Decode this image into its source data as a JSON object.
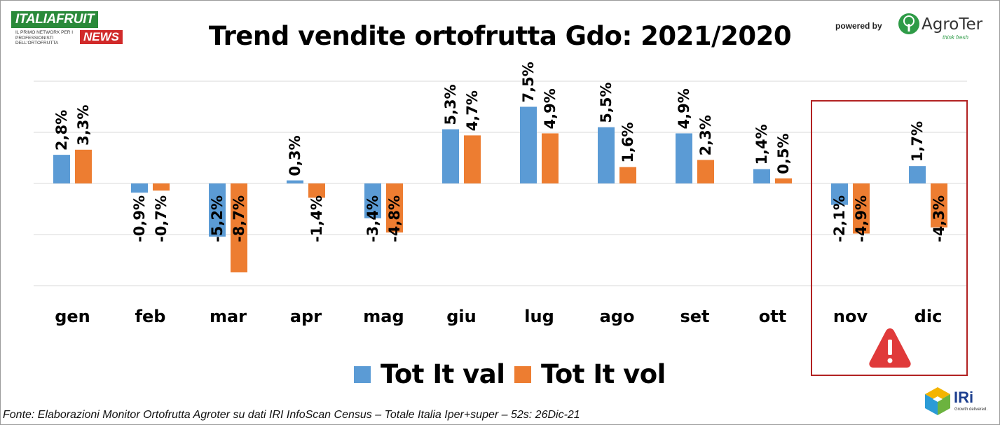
{
  "header": {
    "logo_top": "ITALIAFRUIT",
    "logo_sub": "IL PRIMO NETWORK PER I PROFESSIONISTI DELL'ORTOFRUTTA",
    "logo_news": "NEWS",
    "powered_by": "powered by",
    "sponsor_name": "AgroTer",
    "sponsor_tagline": "think fresh"
  },
  "footer": {
    "source": "Fonte: Elaborazioni Monitor Ortofrutta Agroter su dati IRI InfoScan Census – Totale Italia Iper+super – 52s: 26Dic-21",
    "iri_name": "IRi",
    "iri_tagline": "Growth delivered."
  },
  "chart_data": {
    "type": "bar",
    "title": "Trend vendite ortofrutta Gdo: 2021/2020",
    "xlabel": "",
    "ylabel": "",
    "ylim": [
      -10,
      10
    ],
    "grid": true,
    "legend_position": "bottom",
    "categories": [
      "gen",
      "feb",
      "mar",
      "apr",
      "mag",
      "giu",
      "lug",
      "ago",
      "set",
      "ott",
      "nov",
      "dic"
    ],
    "series": [
      {
        "name": "Tot It val",
        "color": "#5b9bd5",
        "values": [
          2.8,
          -0.9,
          -5.2,
          0.3,
          -3.4,
          5.3,
          7.5,
          5.5,
          4.9,
          1.4,
          -2.1,
          1.7
        ],
        "labels": [
          "2,8%",
          "-0,9%",
          "-5,2%",
          "0,3%",
          "-3,4%",
          "5,3%",
          "7,5%",
          "5,5%",
          "4,9%",
          "1,4%",
          "-2,1%",
          "1,7%"
        ]
      },
      {
        "name": "Tot It vol",
        "color": "#ed7d31",
        "values": [
          3.3,
          -0.7,
          -8.7,
          -1.4,
          -4.8,
          4.7,
          4.9,
          1.6,
          2.3,
          0.5,
          -4.9,
          -4.3
        ],
        "labels": [
          "3,3%",
          "-0,7%",
          "-8,7%",
          "-1,4%",
          "-4,8%",
          "4,7%",
          "4,9%",
          "1,6%",
          "2,3%",
          "0,5%",
          "-4,9%",
          "-4,3%"
        ]
      }
    ],
    "highlight_categories": [
      "nov",
      "dic"
    ],
    "highlight_color": "#b22222",
    "warning_icon": "warning-triangle-icon",
    "warning_color": "#e03a3a"
  }
}
